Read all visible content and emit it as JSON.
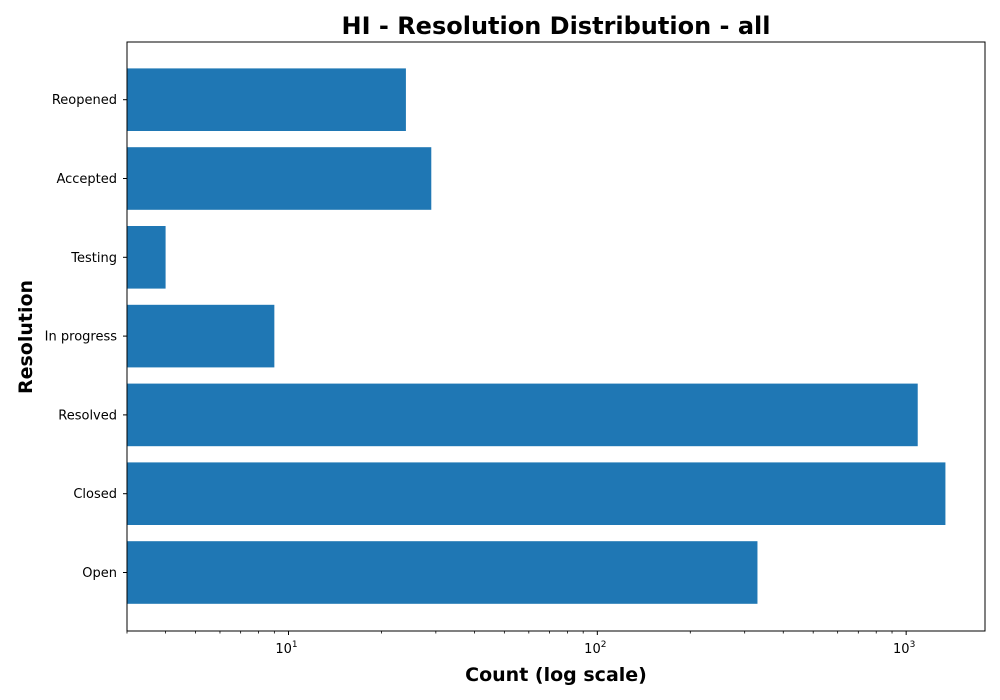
{
  "chart_data": {
    "type": "bar",
    "orientation": "horizontal",
    "title": "HI - Resolution Distribution - all",
    "xlabel": "Count (log scale)",
    "ylabel": "Resolution",
    "x_scale": "log",
    "xlim": [
      3,
      1800
    ],
    "x_ticks": [
      {
        "base": "10",
        "exp": "1",
        "value": 10
      },
      {
        "base": "10",
        "exp": "2",
        "value": 100
      },
      {
        "base": "10",
        "exp": "3",
        "value": 1000
      }
    ],
    "categories": [
      "Open",
      "Closed",
      "Resolved",
      "In progress",
      "Testing",
      "Accepted",
      "Reopened"
    ],
    "values": [
      330,
      1340,
      1090,
      9,
      4,
      29,
      24
    ],
    "bar_color": "#1f77b4",
    "grid": false,
    "legend": "none"
  }
}
